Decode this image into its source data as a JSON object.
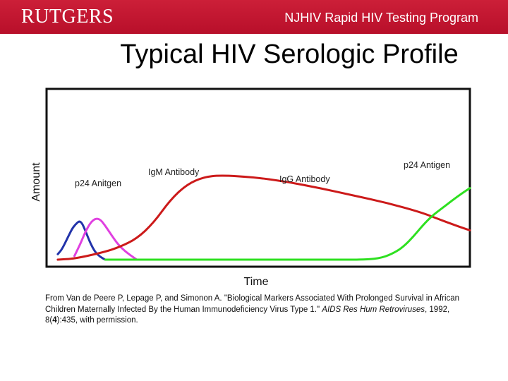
{
  "header": {
    "logo_text": "RUTGERS",
    "program": "NJHIV Rapid HIV Testing Program",
    "brand_color": "#c8102e"
  },
  "slide": {
    "title": "Typical HIV Serologic Profile"
  },
  "chart_data": {
    "type": "line",
    "xlabel": "Time",
    "ylabel": "Amount",
    "axis_ticks": "none",
    "grid": false,
    "legend": "none (series labeled directly on curves)",
    "series": [
      {
        "name": "p24 Anitgen",
        "color": "#2233aa",
        "points": [
          [
            5,
            6
          ],
          [
            10,
            11
          ],
          [
            18,
            26
          ],
          [
            23,
            35
          ],
          [
            28,
            40
          ],
          [
            31,
            42
          ],
          [
            34,
            40
          ],
          [
            38,
            32
          ],
          [
            44,
            18
          ],
          [
            50,
            8
          ],
          [
            56,
            3
          ],
          [
            62,
            0
          ]
        ]
      },
      {
        "name": "IgM Antibody",
        "color": "#e040e0",
        "points": [
          [
            25,
            4
          ],
          [
            32,
            17
          ],
          [
            38,
            30
          ],
          [
            44,
            40
          ],
          [
            50,
            45
          ],
          [
            56,
            44
          ],
          [
            62,
            37
          ],
          [
            70,
            26
          ],
          [
            78,
            16
          ],
          [
            86,
            9
          ],
          [
            95,
            3
          ],
          [
            100,
            0
          ]
        ]
      },
      {
        "name": "IgG Antibody",
        "color": "#cc1a1a",
        "points": [
          [
            5,
            0
          ],
          [
            25,
            1
          ],
          [
            60,
            8
          ],
          [
            80,
            14
          ],
          [
            100,
            23
          ],
          [
            120,
            40
          ],
          [
            140,
            65
          ],
          [
            160,
            82
          ],
          [
            180,
            90
          ],
          [
            200,
            92
          ],
          [
            240,
            90
          ],
          [
            280,
            85
          ],
          [
            320,
            78
          ],
          [
            360,
            70
          ],
          [
            400,
            62
          ],
          [
            440,
            52
          ],
          [
            460,
            45
          ],
          [
            475,
            40
          ],
          [
            490,
            35
          ],
          [
            500,
            32
          ]
        ]
      },
      {
        "name": "p24 Antigen",
        "color": "#2ee020",
        "points": [
          [
            62,
            0
          ],
          [
            140,
            0
          ],
          [
            260,
            0
          ],
          [
            330,
            0
          ],
          [
            375,
            0
          ],
          [
            395,
            2
          ],
          [
            410,
            8
          ],
          [
            420,
            14
          ],
          [
            432,
            25
          ],
          [
            444,
            38
          ],
          [
            455,
            48
          ],
          [
            465,
            55
          ],
          [
            478,
            64
          ],
          [
            490,
            72
          ],
          [
            500,
            78
          ]
        ]
      }
    ],
    "labels": [
      {
        "text": "p24 Anitgen",
        "series": 0
      },
      {
        "text": "IgM Antibody",
        "series": 1
      },
      {
        "text": "IgG Antibody",
        "series": 2
      },
      {
        "text": "p24 Antigen",
        "series": 3
      }
    ]
  },
  "citation": {
    "prefix": "From Van de Peere P, Lepage P, and Simonon A. \"Biological Markers Associated With Prolonged Survival in African Children Maternally Infected By the Human Immunodeficiency Virus Type 1.\" ",
    "journal": "AIDS Res Hum Retroviruses",
    "date": ", 1992, 8(",
    "issue": "4",
    "suffix": "):435, with permission."
  }
}
